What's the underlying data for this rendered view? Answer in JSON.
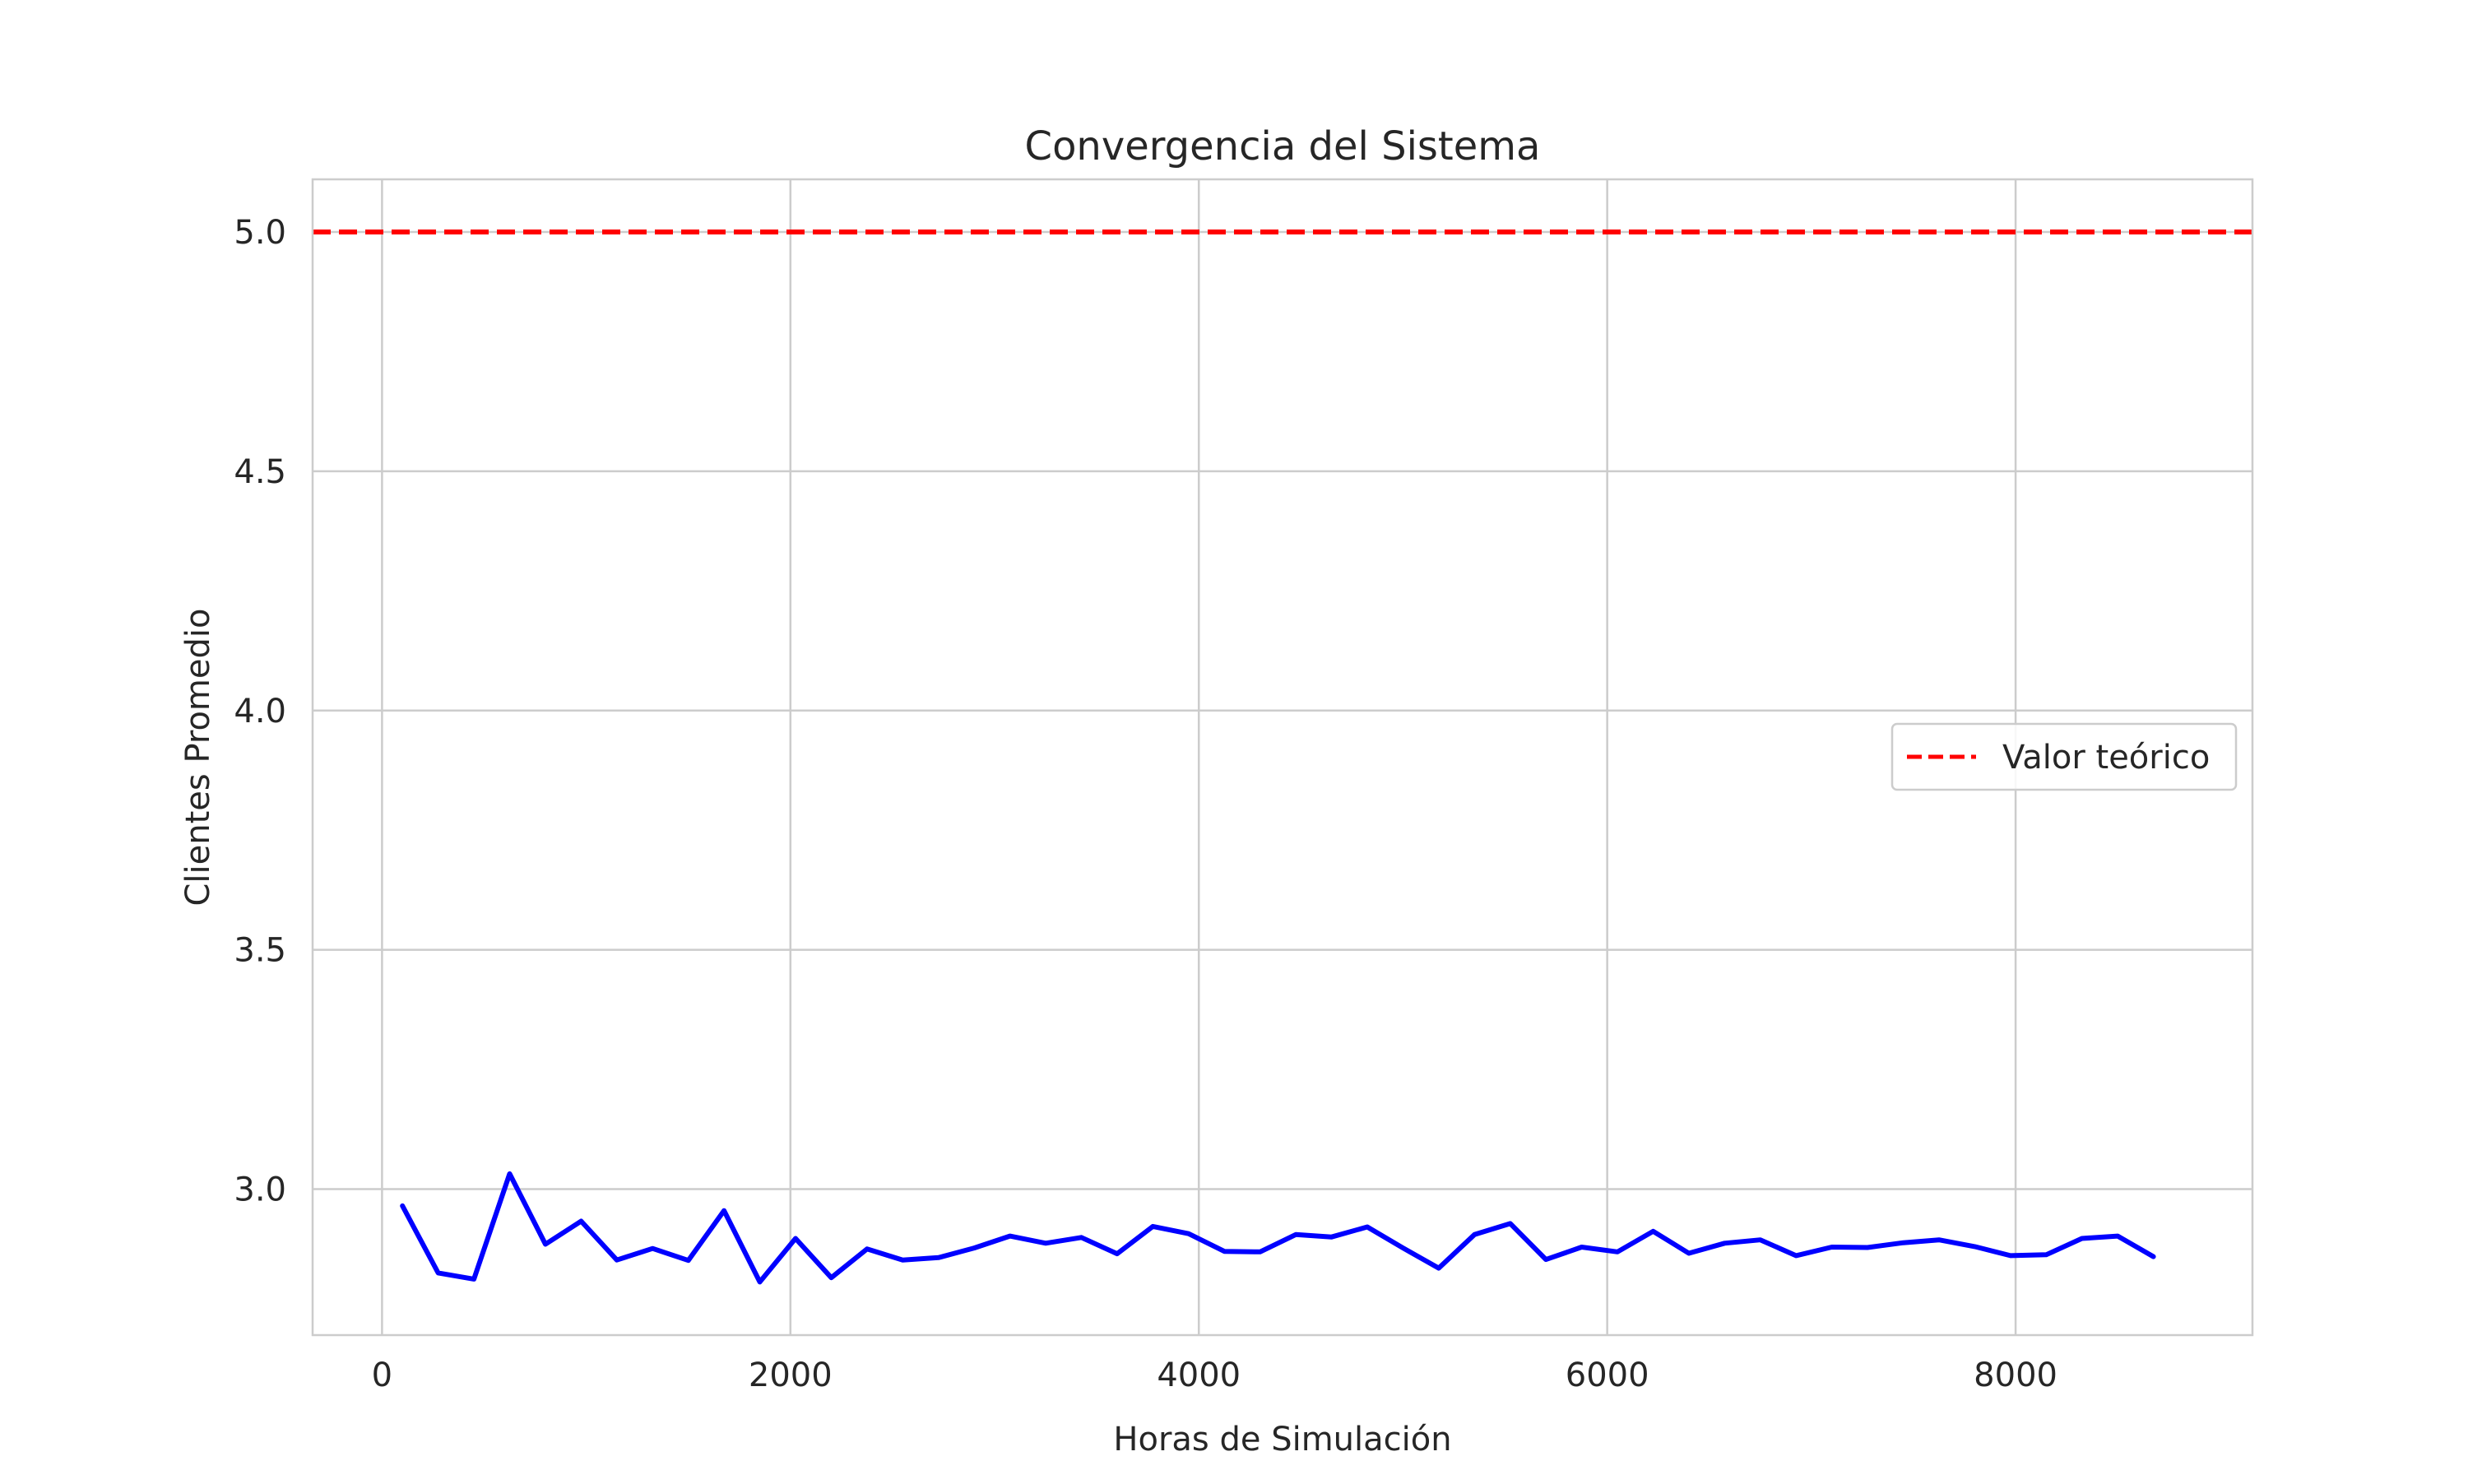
{
  "chart_data": {
    "type": "line",
    "title": "Convergencia del Sistema",
    "xlabel": "Horas de Simulación",
    "ylabel": "Clientes Promedio",
    "xlim": [
      -340,
      9160
    ],
    "ylim": [
      2.695,
      5.11
    ],
    "x_ticks": [
      0,
      2000,
      4000,
      6000,
      8000
    ],
    "x_tick_labels": [
      "0",
      "2000",
      "4000",
      "6000",
      "8000"
    ],
    "y_ticks": [
      3.0,
      3.5,
      4.0,
      4.5,
      5.0
    ],
    "y_tick_labels": [
      "3.0",
      "3.5",
      "4.0",
      "4.5",
      "5.0"
    ],
    "grid": true,
    "legend_position": "center-right",
    "series": [
      {
        "style": "solid",
        "color": "#0000ff",
        "x": [
          100,
          275,
          450,
          625,
          800,
          975,
          1150,
          1325,
          1500,
          1675,
          1850,
          2025,
          2200,
          2375,
          2550,
          2725,
          2900,
          3075,
          3250,
          3425,
          3600,
          3775,
          3950,
          4125,
          4300,
          4475,
          4650,
          4825,
          5000,
          5175,
          5350,
          5525,
          5700,
          5875,
          6050,
          6225,
          6400,
          6575,
          6750,
          6925,
          7100,
          7275,
          7450,
          7625,
          7800,
          7975,
          8150,
          8325,
          8500,
          8675
        ],
        "y": [
          2.965,
          2.825,
          2.812,
          3.032,
          2.885,
          2.933,
          2.852,
          2.876,
          2.851,
          2.955,
          2.806,
          2.897,
          2.815,
          2.875,
          2.852,
          2.857,
          2.877,
          2.902,
          2.887,
          2.899,
          2.865,
          2.922,
          2.907,
          2.87,
          2.869,
          2.905,
          2.9,
          2.921,
          2.877,
          2.835,
          2.905,
          2.928,
          2.853,
          2.879,
          2.869,
          2.912,
          2.866,
          2.887,
          2.894,
          2.861,
          2.879,
          2.878,
          2.888,
          2.894,
          2.88,
          2.861,
          2.863,
          2.897,
          2.902,
          2.859
        ]
      },
      {
        "name": "Valor teórico",
        "style": "dashed",
        "color": "#ff0000",
        "x": [
          -340,
          9160
        ],
        "y": [
          5.0,
          5.0
        ]
      }
    ]
  }
}
